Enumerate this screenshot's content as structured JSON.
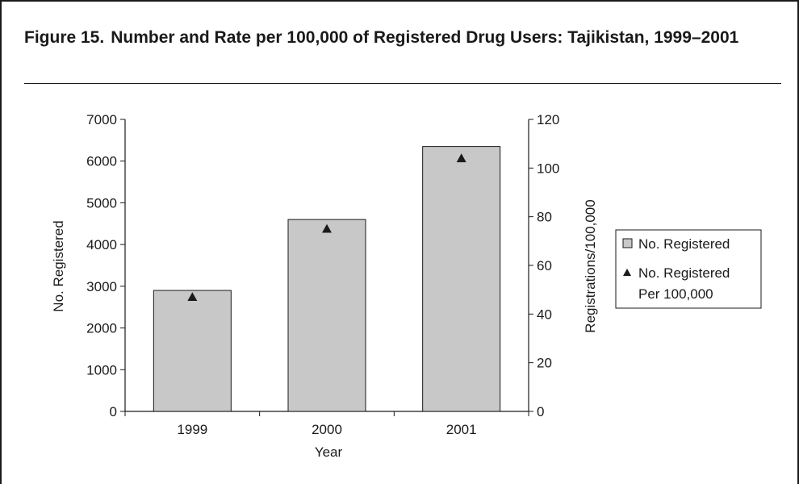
{
  "figure": {
    "number": "Figure 15.",
    "title": "Number and Rate per 100,000 of Registered Drug Users: Tajikistan, 1999–2001"
  },
  "chart_data": {
    "type": "bar",
    "categories": [
      "1999",
      "2000",
      "2001"
    ],
    "xlabel": "Year",
    "ylabel": "No. Registered",
    "y2label": "Registrations/100,000",
    "ylim": [
      0,
      7000
    ],
    "y2lim": [
      0,
      120
    ],
    "yticks": [
      0,
      1000,
      2000,
      3000,
      4000,
      5000,
      6000,
      7000
    ],
    "y2ticks": [
      0,
      20,
      40,
      60,
      80,
      100,
      120
    ],
    "grid": false,
    "legend_position": "right",
    "series": [
      {
        "name": "No. Registered",
        "type": "bar",
        "axis": "left",
        "values": [
          2900,
          4600,
          6350
        ],
        "color": "#c8c8c8"
      },
      {
        "name": "No. Registered Per 100,000",
        "type": "marker",
        "marker": "triangle",
        "axis": "right",
        "values": [
          47,
          75,
          104
        ],
        "color": "#1a1a1a"
      }
    ],
    "legend": [
      {
        "line1": "No. Registered",
        "line2": ""
      },
      {
        "line1": "No. Registered",
        "line2": "Per 100,000"
      }
    ]
  }
}
